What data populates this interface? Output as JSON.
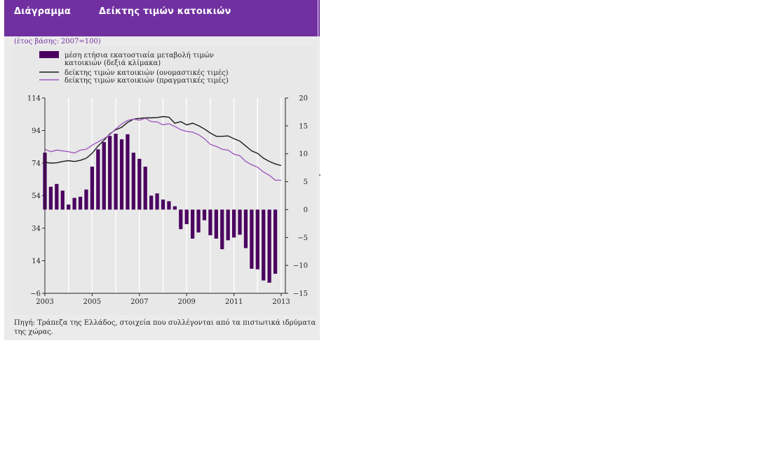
{
  "header": {
    "label": "Διάγραμμα",
    "title": "Δείκτης τιμών κατοικιών"
  },
  "subtitle": "(έτος βάσης: 2007=100)",
  "source": "Πηγή: Τράπεζα της Ελλάδος, στοιχεία που συλλέγονται από τα πιστωτικά ιδρύματα της χώρας.",
  "colors": {
    "header": "#7030a0",
    "bars": "#4b0060",
    "nominal": "#1a1a1a",
    "real": "#a05cc0",
    "background": "#ebebeb"
  },
  "chart_data": {
    "type": "bar+line",
    "title": "Δείκτης τιμών κατοικιών",
    "legend": [
      "μέση ετήσια εκατοστιαία μεταβολή τιμών κατοικιών (δεξιά κλίμακα)",
      "δείκτης τιμών κατοικιών (ονομαστικές τιμές)",
      "δείκτης τιμών κατοικιών (πραγματικές τιμές)"
    ],
    "left_axis": {
      "min": -6,
      "max": 114,
      "ticks": [
        "114",
        "94",
        "74",
        "54",
        "34",
        "14",
        "−6"
      ]
    },
    "right_axis": {
      "min": -15,
      "max": 20,
      "ticks": [
        "20",
        "15",
        "10",
        "5",
        "0",
        "−5",
        "−10",
        "−15"
      ]
    },
    "x_axis": {
      "start": 2003,
      "end": 2013,
      "labels": [
        "2003",
        "2005",
        "2007",
        "2009",
        "2011",
        "2013"
      ]
    },
    "bars": {
      "name": "μέση ετήσια εκατοστιαία μεταβολή τιμών κατοικιών (δεξιά κλίμακα)",
      "axis": "right",
      "x": [
        2003.0,
        2003.25,
        2003.5,
        2003.75,
        2004.0,
        2004.25,
        2004.5,
        2004.75,
        2005.0,
        2005.25,
        2005.5,
        2005.75,
        2006.0,
        2006.25,
        2006.5,
        2006.75,
        2007.0,
        2007.25,
        2007.5,
        2007.75,
        2008.0,
        2008.25,
        2008.5,
        2008.75,
        2009.0,
        2009.25,
        2009.5,
        2009.75,
        2010.0,
        2010.25,
        2010.5,
        2010.75,
        2011.0,
        2011.25,
        2011.5,
        2011.75,
        2012.0,
        2012.25,
        2012.5,
        2012.75,
        2013.0
      ],
      "values": [
        10.2,
        4.1,
        4.6,
        3.4,
        0.9,
        2.1,
        2.3,
        3.6,
        7.7,
        10.8,
        12.1,
        13.2,
        13.6,
        12.6,
        13.5,
        10.2,
        9.1,
        7.7,
        2.5,
        2.9,
        1.8,
        1.5,
        0.6,
        -3.5,
        -2.6,
        -5.2,
        -4.1,
        -1.9,
        -4.6,
        -5.2,
        -7.1,
        -5.5,
        -5.0,
        -4.5,
        -6.9,
        -10.6,
        -10.7,
        -12.7,
        -13.1,
        -11.5,
        0
      ]
    },
    "series": [
      {
        "name": "δείκτης τιμών κατοικιών (ονομαστικές τιμές)",
        "axis": "left",
        "x": [
          2003.0,
          2003.25,
          2003.5,
          2003.75,
          2004.0,
          2004.25,
          2004.5,
          2004.75,
          2005.0,
          2005.25,
          2005.5,
          2005.75,
          2006.0,
          2006.25,
          2006.5,
          2006.75,
          2007.0,
          2007.25,
          2007.5,
          2007.75,
          2008.0,
          2008.25,
          2008.5,
          2008.75,
          2009.0,
          2009.25,
          2009.5,
          2009.75,
          2010.0,
          2010.25,
          2010.5,
          2010.75,
          2011.0,
          2011.25,
          2011.5,
          2011.75,
          2012.0,
          2012.25,
          2012.5,
          2012.75,
          2013.0
        ],
        "values": [
          74.5,
          74.0,
          74.2,
          75.0,
          75.5,
          75.0,
          75.7,
          77.0,
          80.0,
          84.5,
          88.0,
          92.0,
          94.5,
          96.0,
          99.0,
          101.0,
          101.5,
          101.8,
          101.8,
          102.0,
          102.6,
          102.2,
          98.5,
          99.5,
          97.5,
          98.5,
          97.0,
          95.0,
          92.5,
          90.5,
          90.5,
          90.7,
          89.0,
          87.5,
          84.5,
          81.5,
          80.0,
          77.0,
          75.0,
          73.5,
          72.5
        ]
      },
      {
        "name": "δείκτης τιμών κατοικιών (πραγματικές τιμές)",
        "axis": "left",
        "x": [
          2003.0,
          2003.25,
          2003.5,
          2003.75,
          2004.0,
          2004.25,
          2004.5,
          2004.75,
          2005.0,
          2005.25,
          2005.5,
          2005.75,
          2006.0,
          2006.25,
          2006.5,
          2006.75,
          2007.0,
          2007.25,
          2007.5,
          2007.75,
          2008.0,
          2008.25,
          2008.5,
          2008.75,
          2009.0,
          2009.25,
          2009.5,
          2009.75,
          2010.0,
          2010.25,
          2010.5,
          2010.75,
          2011.0,
          2011.25,
          2011.5,
          2011.75,
          2012.0,
          2012.25,
          2012.5,
          2012.75,
          2013.0
        ],
        "values": [
          82.5,
          81.0,
          82.0,
          81.5,
          81.0,
          80.2,
          82.0,
          82.5,
          85.0,
          87.0,
          89.0,
          91.5,
          95.0,
          98.0,
          100.3,
          101.0,
          100.4,
          101.5,
          99.5,
          99.3,
          97.5,
          98.2,
          96.5,
          94.5,
          93.5,
          93.0,
          91.5,
          89.0,
          85.5,
          84.3,
          82.5,
          82.0,
          79.5,
          78.5,
          75.0,
          73.0,
          71.5,
          68.5,
          66.5,
          63.5,
          63.5
        ]
      }
    ]
  }
}
